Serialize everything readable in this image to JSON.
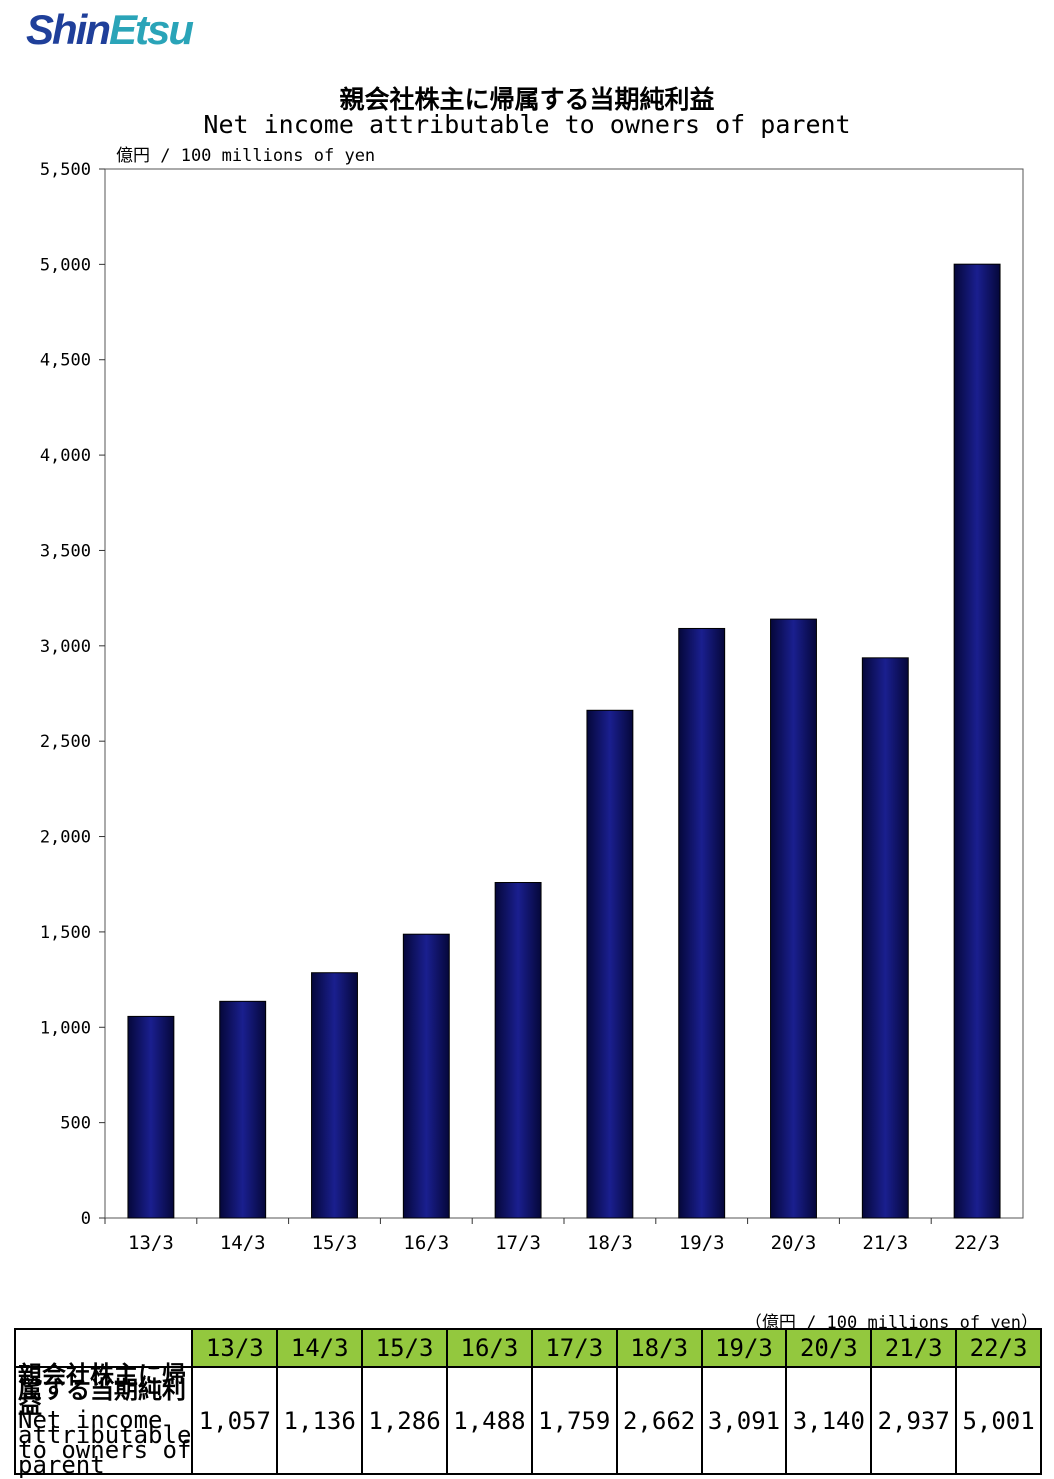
{
  "logo": {
    "text_a": "Shin",
    "text_b": "Etsu"
  },
  "chart_data": {
    "type": "bar",
    "title": "親会社株主に帰属する当期純利益",
    "subtitle": "Net income attributable to owners of parent",
    "ylabel": "億円 / 100 millions of yen",
    "categories": [
      "13/3",
      "14/3",
      "15/3",
      "16/3",
      "17/3",
      "18/3",
      "19/3",
      "20/3",
      "21/3",
      "22/3"
    ],
    "values": [
      1057,
      1136,
      1286,
      1488,
      1759,
      2662,
      3091,
      3140,
      2937,
      5001
    ],
    "ylim": [
      0,
      5500
    ],
    "yticks": [
      "0",
      "500",
      "1,000",
      "1,500",
      "2,000",
      "2,500",
      "3,000",
      "3,500",
      "4,000",
      "4,500",
      "5,000",
      "5,500"
    ],
    "grid": false,
    "bar_color": "#0b0f6b"
  },
  "table": {
    "unit": "（億円 / 100 millions of yen）",
    "row_label_jp": "親会社株主に帰属する当期純利益",
    "row_label_en": "Net income attributable to owners of parent",
    "headers": [
      "13/3",
      "14/3",
      "15/3",
      "16/3",
      "17/3",
      "18/3",
      "19/3",
      "20/3",
      "21/3",
      "22/3"
    ],
    "values": [
      "1,057",
      "1,136",
      "1,286",
      "1,488",
      "1,759",
      "2,662",
      "3,091",
      "3,140",
      "2,937",
      "5,001"
    ],
    "header_color": "#93c83e"
  }
}
